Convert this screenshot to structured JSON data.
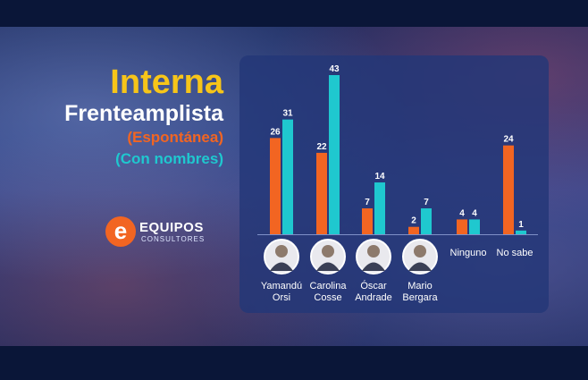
{
  "header": {
    "title": "Interna",
    "subtitle": "Frenteamplista",
    "legend_spontaneous": "(Espontánea)",
    "legend_named": "(Con nombres)"
  },
  "logo": {
    "letter": "e",
    "name": "EQUIPOS",
    "sub": "CONSULTORES"
  },
  "colors": {
    "spontaneous": "#f26522",
    "named": "#1fc8cf",
    "title": "#f7c519"
  },
  "chart_data": {
    "type": "bar",
    "title": "Interna Frenteamplista",
    "categories": [
      [
        "Yamandú",
        "Orsi"
      ],
      [
        "Carolina",
        "Cosse"
      ],
      [
        "Óscar",
        "Andrade"
      ],
      [
        "Mario",
        "Bergara"
      ],
      [
        "Ninguno"
      ],
      [
        "No sabe"
      ]
    ],
    "has_photo": [
      true,
      true,
      true,
      true,
      false,
      false
    ],
    "series": [
      {
        "name": "(Espontánea)",
        "values": [
          26,
          22,
          7,
          2,
          4,
          24
        ]
      },
      {
        "name": "(Con nombres)",
        "values": [
          31,
          43,
          14,
          7,
          4,
          1
        ]
      }
    ],
    "ylim": [
      0,
      43
    ],
    "xlabel": "",
    "ylabel": ""
  }
}
